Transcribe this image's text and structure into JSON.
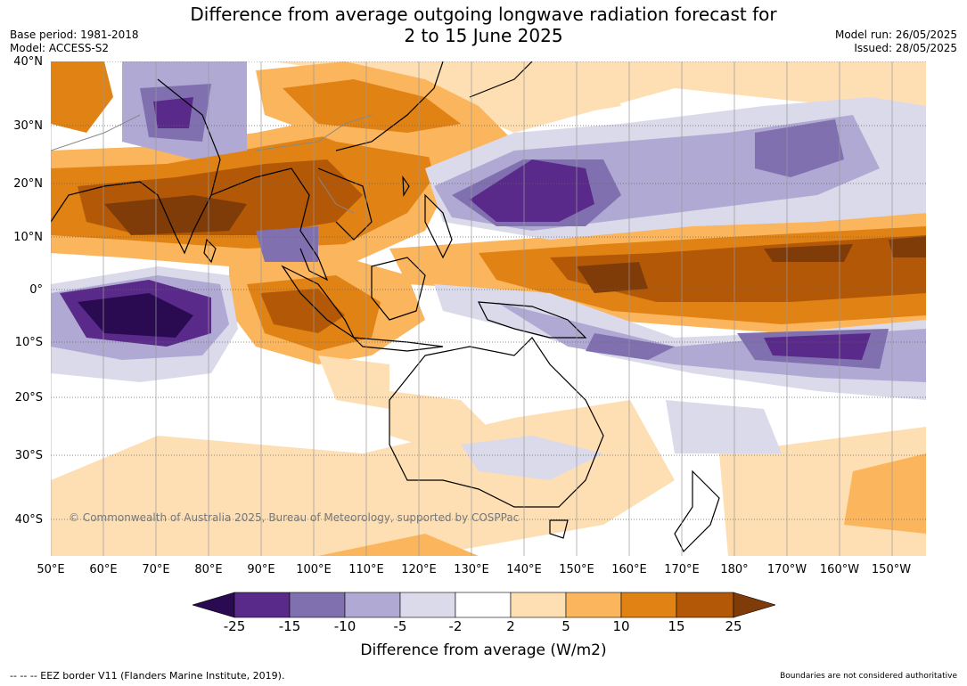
{
  "title_line1": "Difference from average outgoing longwave radiation forecast for",
  "title_line2": "2 to 15 June 2025",
  "base_period": "Base period: 1981-2018",
  "model": "Model: ACCESS-S2",
  "model_run": "Model run: 26/05/2025",
  "issued": "Issued: 28/05/2025",
  "lat_labels": [
    "40°N",
    "30°N",
    "20°N",
    "10°N",
    "0°",
    "10°S",
    "20°S",
    "30°S",
    "40°S"
  ],
  "lon_labels": [
    "50°E",
    "60°E",
    "70°E",
    "80°E",
    "90°E",
    "100°E",
    "110°E",
    "120°E",
    "130°E",
    "140°E",
    "150°E",
    "160°E",
    "170°E",
    "180°",
    "170°W",
    "160°W",
    "150°W"
  ],
  "copyright": "© Commonwealth of Australia 2025, Bureau of Meteorology, supported by COSPPac",
  "colorbar": {
    "ticks": [
      "-25",
      "-15",
      "-10",
      "-5",
      "-2",
      "2",
      "5",
      "10",
      "15",
      "25"
    ],
    "title": "Difference from average (W/m2)",
    "colors": [
      "#2a0b52",
      "#5a2a8a",
      "#8170b0",
      "#b0a9d3",
      "#dadaeb",
      "#ffffff",
      "#fedfb3",
      "#fbb55d",
      "#e08214",
      "#b35806",
      "#7f3b08"
    ]
  },
  "footer_left": "--  --  -- EEZ border V11 (Flanders Marine Institute, 2019).",
  "footer_right": "Boundaries are not considered authoritative"
}
